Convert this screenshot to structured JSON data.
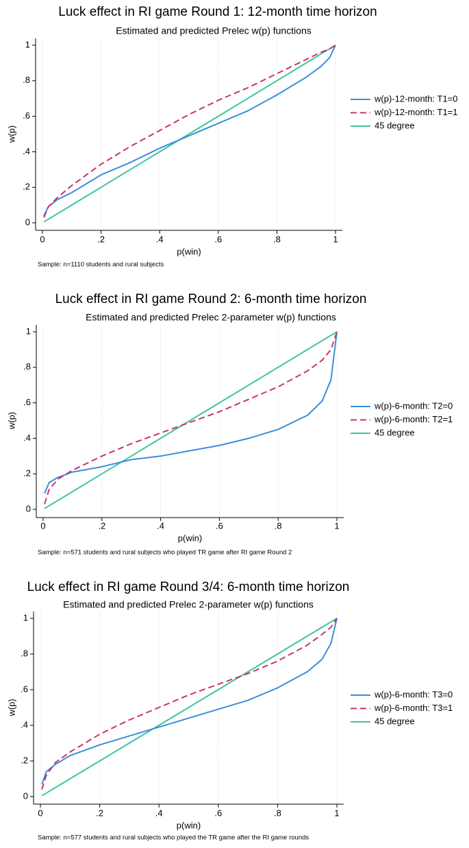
{
  "chart_data": [
    {
      "type": "line",
      "title": "Luck effect in RI game Round 1: 12-month time horizon",
      "subtitle": "Estimated and predicted Prelec w(p) functions",
      "xlabel": "p(win)",
      "ylabel": "w(p)",
      "note": "Sample: n=1110 students and rural subjects",
      "x": [
        0.005,
        0.02,
        0.05,
        0.1,
        0.2,
        0.3,
        0.4,
        0.5,
        0.6,
        0.7,
        0.8,
        0.9,
        0.95,
        0.98,
        1
      ],
      "series": [
        {
          "name": "w(p)-12-month: T1=0",
          "color": "#3a8ddb",
          "linestyle": "solid",
          "values": [
            0.04,
            0.09,
            0.13,
            0.17,
            0.27,
            0.34,
            0.42,
            0.49,
            0.56,
            0.63,
            0.72,
            0.82,
            0.88,
            0.93,
            1
          ]
        },
        {
          "name": "w(p)-12-month: T1=1",
          "color": "#c8336b",
          "linestyle": "dashed",
          "values": [
            0.03,
            0.09,
            0.14,
            0.21,
            0.33,
            0.43,
            0.52,
            0.61,
            0.69,
            0.76,
            0.84,
            0.92,
            0.96,
            0.98,
            1
          ]
        },
        {
          "name": "45 degree",
          "color": "#3cc4a2",
          "linestyle": "solid",
          "values": [
            0.005,
            0.02,
            0.05,
            0.1,
            0.2,
            0.3,
            0.4,
            0.5,
            0.6,
            0.7,
            0.8,
            0.9,
            0.95,
            0.98,
            1
          ]
        }
      ],
      "xlim": [
        0,
        1
      ],
      "ylim": [
        0,
        1
      ],
      "xticks": [
        0,
        {
          "value": 0.2,
          "label": ".2"
        },
        {
          "value": 0.4,
          "label": ".4"
        },
        {
          "value": 0.6,
          "label": ".6"
        },
        {
          "value": 0.8,
          "label": ".8"
        },
        1
      ],
      "yticks": [
        0,
        {
          "value": 0.2,
          "label": ".2"
        },
        {
          "value": 0.4,
          "label": ".4"
        },
        {
          "value": 0.6,
          "label": ".6"
        },
        {
          "value": 0.8,
          "label": ".8"
        },
        1
      ],
      "grid": true,
      "legend": "right"
    },
    {
      "type": "line",
      "title": "Luck effect in RI game Round 2: 6-month time horizon",
      "subtitle": "Estimated and predicted Prelec 2-parameter w(p) functions",
      "xlabel": "p(win)",
      "ylabel": "w(p)",
      "note": "Sample: n=571 students and rural subjects who played TR game after RI game Round 2",
      "x": [
        0.005,
        0.02,
        0.05,
        0.1,
        0.2,
        0.3,
        0.4,
        0.5,
        0.6,
        0.7,
        0.8,
        0.9,
        0.95,
        0.98,
        1
      ],
      "series": [
        {
          "name": "w(p)-6-month: T2=0",
          "color": "#3a8ddb",
          "linestyle": "solid",
          "values": [
            0.09,
            0.15,
            0.18,
            0.21,
            0.24,
            0.28,
            0.3,
            0.33,
            0.36,
            0.4,
            0.45,
            0.53,
            0.61,
            0.73,
            1
          ]
        },
        {
          "name": "w(p)-6-month: T2=1",
          "color": "#c8336b",
          "linestyle": "dashed",
          "values": [
            0.03,
            0.11,
            0.17,
            0.22,
            0.3,
            0.37,
            0.43,
            0.49,
            0.55,
            0.62,
            0.69,
            0.78,
            0.84,
            0.9,
            1
          ]
        },
        {
          "name": "45 degree",
          "color": "#3cc4a2",
          "linestyle": "solid",
          "values": [
            0.005,
            0.02,
            0.05,
            0.1,
            0.2,
            0.3,
            0.4,
            0.5,
            0.6,
            0.7,
            0.8,
            0.9,
            0.95,
            0.98,
            1
          ]
        }
      ],
      "xlim": [
        0,
        1
      ],
      "ylim": [
        0,
        1
      ],
      "xticks": [
        0,
        {
          "value": 0.2,
          "label": ".2"
        },
        {
          "value": 0.4,
          "label": ".4"
        },
        {
          "value": 0.6,
          "label": ".6"
        },
        {
          "value": 0.8,
          "label": ".8"
        },
        1
      ],
      "yticks": [
        0,
        {
          "value": 0.2,
          "label": ".2"
        },
        {
          "value": 0.4,
          "label": ".4"
        },
        {
          "value": 0.6,
          "label": ".6"
        },
        {
          "value": 0.8,
          "label": ".8"
        },
        1
      ],
      "grid": true,
      "legend": "right"
    },
    {
      "type": "line",
      "title": "Luck effect in RI game Round 3/4: 6-month time horizon",
      "subtitle": "Estimated and predicted Prelec 2-parameter w(p) functions",
      "xlabel": "p(win)",
      "ylabel": "w(p)",
      "note": "Sample: n=577 students and rural subjects who played the TR game after the RI game rounds",
      "x": [
        0.005,
        0.02,
        0.05,
        0.1,
        0.2,
        0.3,
        0.4,
        0.5,
        0.6,
        0.7,
        0.8,
        0.9,
        0.95,
        0.98,
        1
      ],
      "series": [
        {
          "name": "w(p)-6-month: T3=0",
          "color": "#3a8ddb",
          "linestyle": "solid",
          "values": [
            0.07,
            0.14,
            0.18,
            0.23,
            0.29,
            0.34,
            0.39,
            0.44,
            0.49,
            0.54,
            0.61,
            0.7,
            0.77,
            0.86,
            1
          ]
        },
        {
          "name": "w(p)-6-month: T3=1",
          "color": "#c8336b",
          "linestyle": "dashed",
          "values": [
            0.04,
            0.12,
            0.19,
            0.25,
            0.35,
            0.43,
            0.5,
            0.57,
            0.63,
            0.69,
            0.76,
            0.85,
            0.91,
            0.95,
            1
          ]
        },
        {
          "name": "45 degree",
          "color": "#3cc4a2",
          "linestyle": "solid",
          "values": [
            0.005,
            0.02,
            0.05,
            0.1,
            0.2,
            0.3,
            0.4,
            0.5,
            0.6,
            0.7,
            0.8,
            0.9,
            0.95,
            0.98,
            1
          ]
        }
      ],
      "xlim": [
        0,
        1
      ],
      "ylim": [
        0,
        1
      ],
      "xticks": [
        0,
        {
          "value": 0.2,
          "label": ".2"
        },
        {
          "value": 0.4,
          "label": ".4"
        },
        {
          "value": 0.6,
          "label": ".6"
        },
        {
          "value": 0.8,
          "label": ".8"
        },
        1
      ],
      "yticks": [
        0,
        {
          "value": 0.2,
          "label": ".2"
        },
        {
          "value": 0.4,
          "label": ".4"
        },
        {
          "value": 0.6,
          "label": ".6"
        },
        {
          "value": 0.8,
          "label": ".8"
        },
        1
      ],
      "grid": true,
      "legend": "right"
    }
  ]
}
